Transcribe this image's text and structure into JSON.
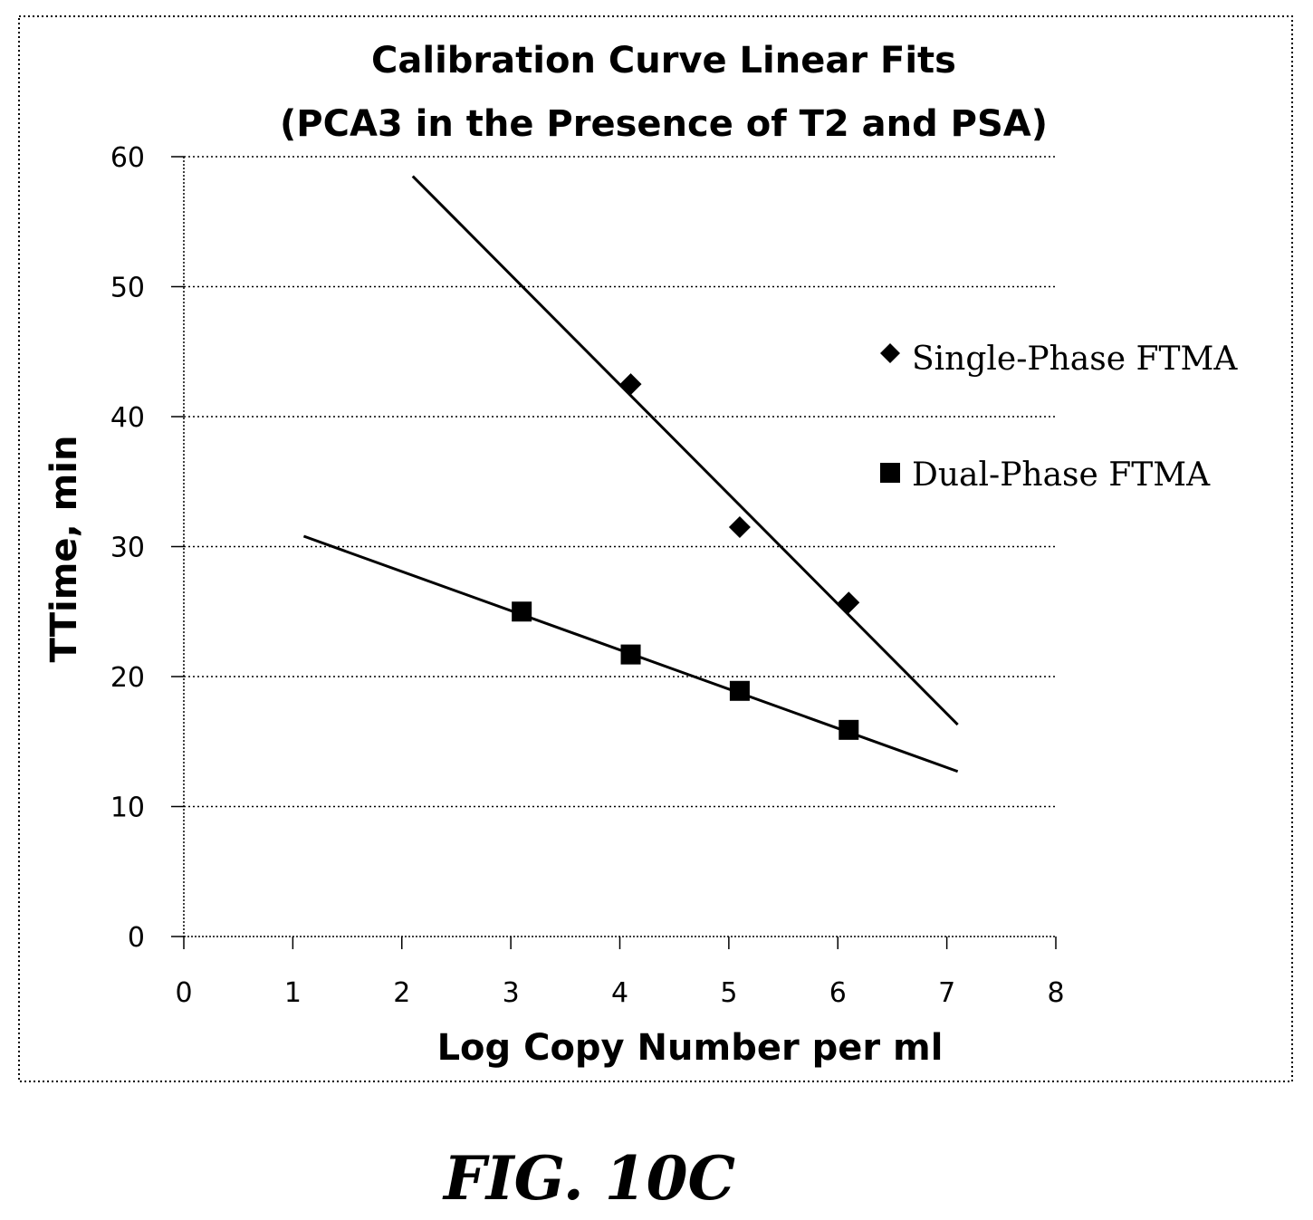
{
  "chart_data": {
    "type": "scatter",
    "title_lines": [
      "Calibration Curve Linear Fits",
      "(PCA3 in the Presence of T2 and PSA)"
    ],
    "xlabel": "Log Copy Number per ml",
    "ylabel": "TTime, min",
    "xlim": [
      0,
      8
    ],
    "ylim": [
      0,
      60
    ],
    "xticks": [
      "0",
      "1",
      "2",
      "3",
      "4",
      "5",
      "6",
      "7",
      "8"
    ],
    "yticks": [
      "0",
      "10",
      "20",
      "30",
      "40",
      "50",
      "60"
    ],
    "grid": "horizontal dotted",
    "legend_position": "right",
    "series": [
      {
        "name": "Single-Phase FTMA",
        "marker": "diamond",
        "color": "#000000",
        "points": [
          {
            "x": 4.1,
            "y": 42.5
          },
          {
            "x": 5.1,
            "y": 31.5
          },
          {
            "x": 6.1,
            "y": 25.7
          }
        ],
        "fit_line": {
          "x": [
            2.1,
            7.1
          ],
          "y": [
            58.5,
            16.3
          ]
        }
      },
      {
        "name": "Dual-Phase FTMA",
        "marker": "square",
        "color": "#000000",
        "points": [
          {
            "x": 3.1,
            "y": 25.0
          },
          {
            "x": 4.1,
            "y": 21.7
          },
          {
            "x": 5.1,
            "y": 18.9
          },
          {
            "x": 6.1,
            "y": 15.9
          }
        ],
        "fit_line": {
          "x": [
            1.1,
            7.1
          ],
          "y": [
            30.8,
            12.7
          ]
        }
      }
    ]
  },
  "figure_label": "FIG. 10C"
}
